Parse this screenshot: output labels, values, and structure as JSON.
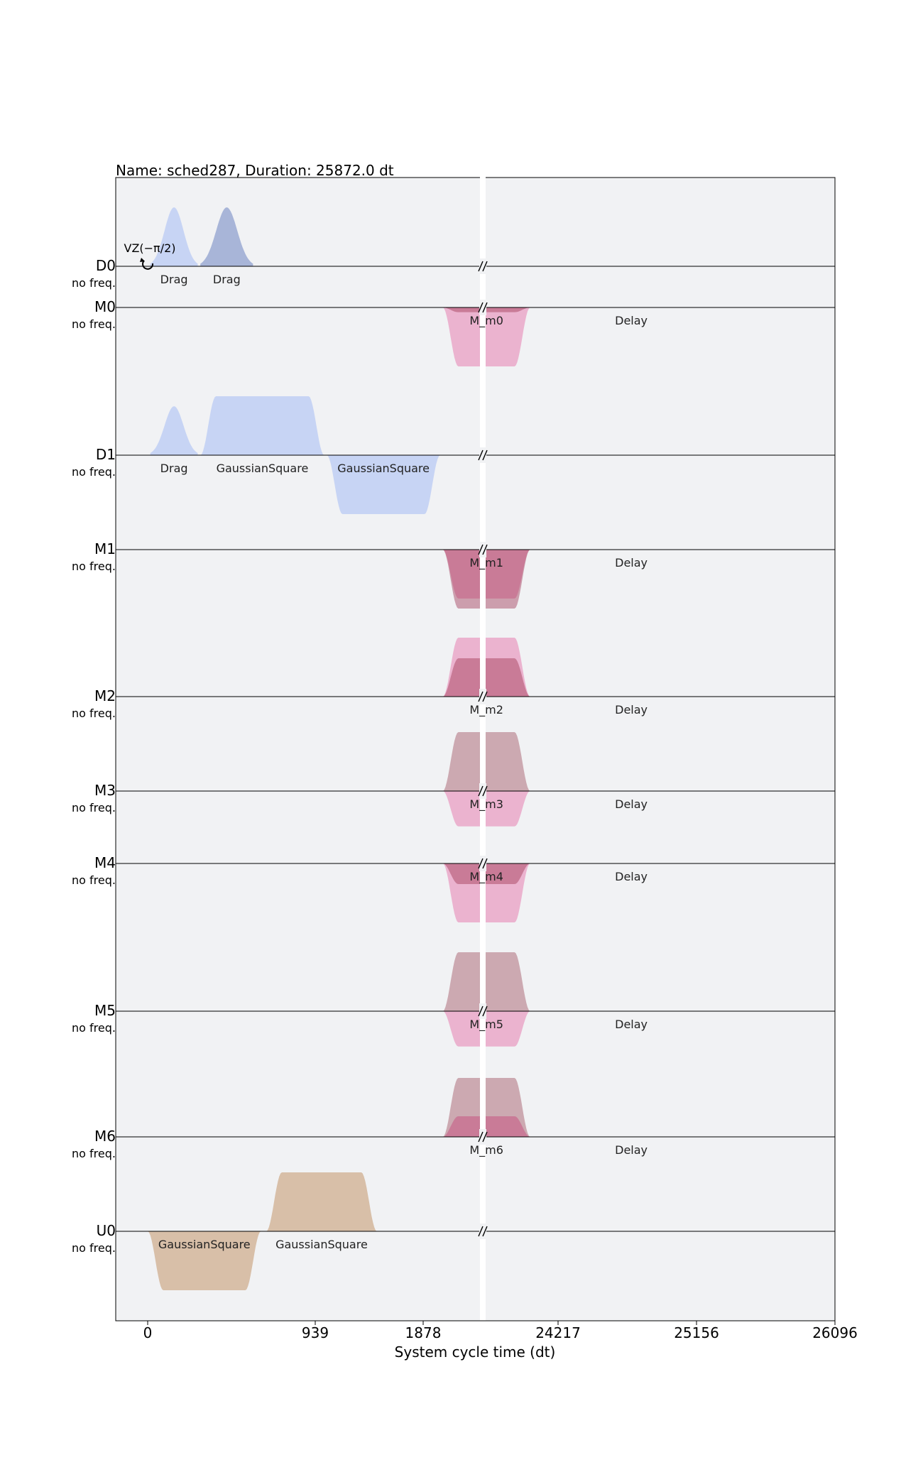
{
  "chart_data": {
    "type": "area",
    "title": "Name: sched287, Duration: 25872.0 dt",
    "xlabel": "System cycle time (dt)",
    "ylabel": "",
    "x_ticks": [
      "0",
      "939",
      "1878",
      "24217",
      "25156",
      "26096"
    ],
    "x_axis_break": {
      "from": 2035,
      "to": 23999
    },
    "grid": false,
    "channels": [
      {
        "name": "D0",
        "freq": "no freq.",
        "baseline_amp": 0.97,
        "frame_changes": [
          {
            "t": 0,
            "label": "VZ(−π/2)"
          }
        ],
        "pulses": [
          {
            "label": "Drag",
            "t0": 16,
            "t1": 304,
            "shape": "gaussian",
            "amp": 1.0,
            "color": "#c7d4f4"
          },
          {
            "label": "Drag",
            "t0": 320,
            "t1": 640,
            "shape": "gaussian",
            "amp": 1.0,
            "color": "#a8b5d8"
          }
        ]
      },
      {
        "name": "M0",
        "freq": "no freq.",
        "baseline_amp": 0.45,
        "pulses": [
          {
            "label": "M_m0",
            "t0": 1792,
            "t1": 24281,
            "shape": "square",
            "amp": -1.0,
            "color": "#ebb3cf"
          },
          {
            "label": "",
            "t0": 1792,
            "t1": 24281,
            "shape": "square",
            "amp": -0.08,
            "color": "#c97b97"
          }
        ],
        "delay": {
          "label": "Delay",
          "t": 24883
        }
      },
      {
        "name": "D1",
        "freq": "no freq.",
        "baseline_amp": 1.0,
        "pulses": [
          {
            "label": "Drag",
            "t0": 16,
            "t1": 304,
            "shape": "gaussian",
            "amp": 0.83,
            "color": "#c7d4f4"
          },
          {
            "label": "GaussianSquare",
            "t0": 320,
            "t1": 1072,
            "shape": "square",
            "amp": 1.0,
            "color": "#c7d4f4"
          },
          {
            "label": "GaussianSquare",
            "t0": 1088,
            "t1": 1776,
            "shape": "square",
            "amp": -1.0,
            "color": "#c7d4f4"
          }
        ]
      },
      {
        "name": "M1",
        "freq": "no freq.",
        "baseline_amp": 0.6,
        "pulses": [
          {
            "label": "M_m1",
            "t0": 1792,
            "t1": 24281,
            "shape": "square",
            "amp": -1.0,
            "color": "#cc9ead"
          },
          {
            "label": "",
            "t0": 1792,
            "t1": 24281,
            "shape": "square",
            "amp": -0.83,
            "color": "#c97b97"
          }
        ],
        "delay": {
          "label": "Delay",
          "t": 24883
        }
      },
      {
        "name": "M2",
        "freq": "no freq.",
        "baseline_amp": 0.35,
        "pulses": [
          {
            "label": "M_m2",
            "t0": 1792,
            "t1": 24281,
            "shape": "square",
            "amp": 1.0,
            "color": "#ebb3cf"
          },
          {
            "label": "",
            "t0": 1792,
            "t1": 24281,
            "shape": "square",
            "amp": 0.65,
            "color": "#c97b97"
          }
        ],
        "delay": {
          "label": "Delay",
          "t": 24883
        }
      },
      {
        "name": "M3",
        "freq": "no freq.",
        "baseline_amp": 0.65,
        "pulses": [
          {
            "label": "M_m3",
            "t0": 1792,
            "t1": 24281,
            "shape": "square",
            "amp": 1.0,
            "color": "#cca9b1"
          },
          {
            "label": "",
            "t0": 1792,
            "t1": 24281,
            "shape": "square",
            "amp": -0.6,
            "color": "#ebb3cf"
          }
        ],
        "delay": {
          "label": "Delay",
          "t": 24883
        }
      },
      {
        "name": "M4",
        "freq": "no freq.",
        "baseline_amp": 0.55,
        "pulses": [
          {
            "label": "M_m4",
            "t0": 1792,
            "t1": 24281,
            "shape": "square",
            "amp": -1.0,
            "color": "#ebb3cf"
          },
          {
            "label": "",
            "t0": 1792,
            "t1": 24281,
            "shape": "square",
            "amp": -0.35,
            "color": "#c97b97"
          }
        ],
        "delay": {
          "label": "Delay",
          "t": 24883
        }
      },
      {
        "name": "M5",
        "freq": "no freq.",
        "baseline_amp": 0.45,
        "pulses": [
          {
            "label": "M_m5",
            "t0": 1792,
            "t1": 24281,
            "shape": "square",
            "amp": 1.0,
            "color": "#cca9b1"
          },
          {
            "label": "",
            "t0": 1792,
            "t1": 24281,
            "shape": "square",
            "amp": -0.6,
            "color": "#ebb3cf"
          }
        ],
        "delay": {
          "label": "Delay",
          "t": 24883
        }
      },
      {
        "name": "M6",
        "freq": "no freq.",
        "baseline_amp": 0.6,
        "pulses": [
          {
            "label": "M_m6",
            "t0": 1792,
            "t1": 24281,
            "shape": "square",
            "amp": 1.0,
            "color": "#cca9b1"
          },
          {
            "label": "",
            "t0": 1792,
            "t1": 24281,
            "shape": "square",
            "amp": 0.35,
            "color": "#c97b97"
          }
        ],
        "delay": {
          "label": "Delay",
          "t": 24883
        }
      },
      {
        "name": "U0",
        "freq": "no freq.",
        "baseline_amp": 0.6,
        "pulses": [
          {
            "label": "GaussianSquare",
            "t0": 0,
            "t1": 688,
            "shape": "square",
            "amp": -1.0,
            "color": "#d8bfa8"
          },
          {
            "label": "GaussianSquare",
            "t0": 720,
            "t1": 1392,
            "shape": "square",
            "amp": 1.0,
            "color": "#d8bfa8"
          }
        ]
      }
    ]
  }
}
